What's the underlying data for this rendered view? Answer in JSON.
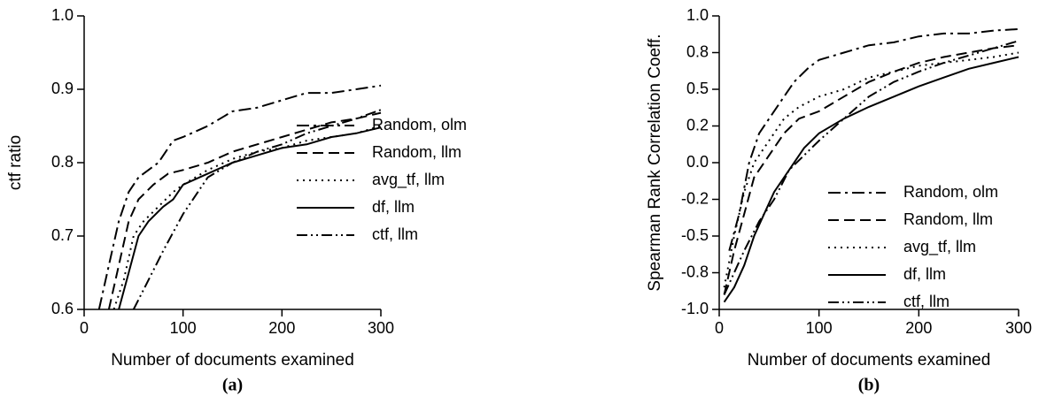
{
  "chart_data": [
    {
      "type": "line",
      "caption": "(a)",
      "xlabel": "Number of documents examined",
      "ylabel": "ctf ratio",
      "xlim": [
        0,
        300
      ],
      "xticks": [
        0,
        100,
        200,
        300
      ],
      "ylim": [
        0.6,
        1.0
      ],
      "yticks": [
        0.6,
        0.7,
        0.8,
        0.9,
        {
          "value": 1.0,
          "label": "1.0"
        }
      ],
      "grid": false,
      "legend": "right",
      "series": [
        {
          "name": "Random, olm",
          "color": "#000000",
          "linestyle": "dashdot",
          "x": [
            15,
            25,
            35,
            45,
            55,
            65,
            75,
            90,
            100,
            125,
            150,
            175,
            200,
            225,
            250,
            275,
            300
          ],
          "values": [
            0.6,
            0.66,
            0.72,
            0.76,
            0.78,
            0.79,
            0.8,
            0.83,
            0.835,
            0.85,
            0.87,
            0.875,
            0.885,
            0.895,
            0.895,
            0.9,
            0.905
          ]
        },
        {
          "name": "Random, llm",
          "color": "#000000",
          "linestyle": "dashed",
          "x": [
            25,
            35,
            45,
            55,
            70,
            85,
            100,
            125,
            150,
            175,
            200,
            225,
            250,
            275,
            300
          ],
          "values": [
            0.6,
            0.66,
            0.72,
            0.75,
            0.77,
            0.785,
            0.79,
            0.8,
            0.815,
            0.825,
            0.835,
            0.845,
            0.855,
            0.86,
            0.868
          ]
        },
        {
          "name": "avg_tf, llm",
          "color": "#000000",
          "linestyle": "dotted",
          "x": [
            30,
            40,
            50,
            60,
            75,
            90,
            100,
            125,
            150,
            175,
            200,
            225,
            250,
            275,
            300
          ],
          "values": [
            0.6,
            0.64,
            0.7,
            0.72,
            0.74,
            0.76,
            0.77,
            0.79,
            0.805,
            0.815,
            0.82,
            0.83,
            0.835,
            0.84,
            0.85
          ]
        },
        {
          "name": "df, llm",
          "color": "#000000",
          "linestyle": "solid",
          "x": [
            35,
            45,
            55,
            65,
            80,
            90,
            100,
            125,
            150,
            175,
            200,
            225,
            250,
            275,
            300
          ],
          "values": [
            0.6,
            0.65,
            0.7,
            0.72,
            0.74,
            0.75,
            0.77,
            0.785,
            0.8,
            0.81,
            0.82,
            0.825,
            0.835,
            0.84,
            0.848
          ]
        },
        {
          "name": "ctf, llm",
          "color": "#000000",
          "linestyle": "dashdotdot",
          "x": [
            50,
            65,
            80,
            100,
            125,
            150,
            175,
            200,
            225,
            250,
            275,
            300
          ],
          "values": [
            0.6,
            0.64,
            0.68,
            0.73,
            0.78,
            0.8,
            0.815,
            0.825,
            0.84,
            0.85,
            0.86,
            0.872
          ]
        }
      ]
    },
    {
      "type": "line",
      "caption": "(b)",
      "xlabel": "Number of documents examined",
      "ylabel": "Spearman Rank Correlation Coeff.",
      "xlim": [
        0,
        300
      ],
      "xticks": [
        0,
        100,
        200,
        300
      ],
      "ylim": [
        -1.0,
        1.0
      ],
      "yticks": [
        {
          "value": -1.0,
          "label": "-1.0"
        },
        {
          "value": -0.75,
          "label": "-0.8"
        },
        -0.5,
        {
          "value": -0.25,
          "label": "-0.2"
        },
        {
          "value": 0,
          "label": "0.0"
        },
        {
          "value": 0.25,
          "label": "0.2"
        },
        0.5,
        {
          "value": 0.75,
          "label": "0.8"
        },
        {
          "value": 1.0,
          "label": "1.0"
        }
      ],
      "grid": false,
      "legend": "lower right",
      "series": [
        {
          "name": "Random, olm",
          "color": "#000000",
          "linestyle": "dashdot",
          "x": [
            10,
            20,
            30,
            40,
            50,
            60,
            75,
            90,
            100,
            125,
            150,
            175,
            200,
            225,
            250,
            275,
            300
          ],
          "values": [
            -0.6,
            -0.35,
            0,
            0.2,
            0.3,
            0.4,
            0.55,
            0.65,
            0.7,
            0.75,
            0.8,
            0.82,
            0.86,
            0.88,
            0.88,
            0.9,
            0.91
          ]
        },
        {
          "name": "Random, llm",
          "color": "#000000",
          "linestyle": "dashed",
          "x": [
            5,
            15,
            25,
            35,
            50,
            65,
            80,
            100,
            125,
            150,
            175,
            200,
            225,
            250,
            275,
            300
          ],
          "values": [
            -0.9,
            -0.6,
            -0.35,
            -0.1,
            0.05,
            0.2,
            0.3,
            0.35,
            0.45,
            0.55,
            0.62,
            0.68,
            0.72,
            0.75,
            0.78,
            0.8
          ]
        },
        {
          "name": "avg_tf, llm",
          "color": "#000000",
          "linestyle": "dotted",
          "x": [
            5,
            15,
            25,
            35,
            50,
            65,
            80,
            100,
            125,
            150,
            175,
            200,
            225,
            250,
            275,
            300
          ],
          "values": [
            -0.85,
            -0.5,
            -0.2,
            0,
            0.15,
            0.3,
            0.38,
            0.45,
            0.5,
            0.58,
            0.62,
            0.66,
            0.68,
            0.7,
            0.72,
            0.75
          ]
        },
        {
          "name": "df, llm",
          "color": "#000000",
          "linestyle": "solid",
          "x": [
            5,
            15,
            25,
            35,
            45,
            55,
            70,
            85,
            100,
            125,
            150,
            175,
            200,
            225,
            250,
            275,
            300
          ],
          "values": [
            -0.95,
            -0.85,
            -0.7,
            -0.5,
            -0.35,
            -0.2,
            -0.05,
            0.1,
            0.2,
            0.3,
            0.38,
            0.45,
            0.52,
            0.58,
            0.64,
            0.68,
            0.72
          ]
        },
        {
          "name": "ctf, llm",
          "color": "#000000",
          "linestyle": "dashdotdot",
          "x": [
            5,
            15,
            25,
            40,
            55,
            70,
            85,
            100,
            125,
            150,
            175,
            200,
            225,
            250,
            275,
            300
          ],
          "values": [
            -0.9,
            -0.75,
            -0.6,
            -0.4,
            -0.25,
            -0.05,
            0.05,
            0.15,
            0.3,
            0.45,
            0.55,
            0.62,
            0.68,
            0.73,
            0.78,
            0.83
          ]
        }
      ]
    }
  ]
}
